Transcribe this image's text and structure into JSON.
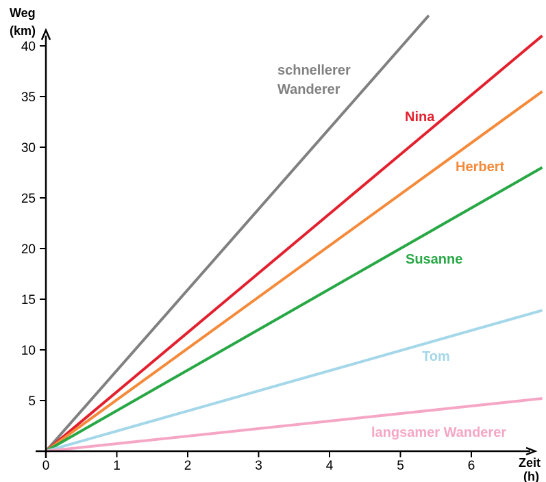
{
  "chart_data": {
    "type": "line",
    "ylabel_lines": [
      "Weg",
      "(km)"
    ],
    "xlabel_lines": [
      "Zeit",
      "(h)"
    ],
    "xlim": [
      0,
      7
    ],
    "ylim": [
      0,
      40
    ],
    "x_ticks": [
      "0",
      "1",
      "2",
      "3",
      "4",
      "5",
      "6"
    ],
    "y_ticks": [
      "5",
      "10",
      "15",
      "20",
      "25",
      "30",
      "35",
      "40"
    ],
    "grid": false,
    "series": [
      {
        "name": "schnellerer Wanderer",
        "label_lines": [
          "schnellerer",
          "Wanderer"
        ],
        "color": "#808080",
        "x": [
          0,
          5.4
        ],
        "y": [
          0,
          43
        ]
      },
      {
        "name": "Nina",
        "label_lines": [
          "Nina"
        ],
        "color": "#e3202e",
        "x": [
          0,
          7
        ],
        "y": [
          0,
          41
        ]
      },
      {
        "name": "Herbert",
        "label_lines": [
          "Herbert"
        ],
        "color": "#f58a3a",
        "x": [
          0,
          7
        ],
        "y": [
          0,
          35.5
        ]
      },
      {
        "name": "Susanne",
        "label_lines": [
          "Susanne"
        ],
        "color": "#27a845",
        "x": [
          0,
          7
        ],
        "y": [
          0,
          28
        ]
      },
      {
        "name": "Tom",
        "label_lines": [
          "Tom"
        ],
        "color": "#a4d7e9",
        "x": [
          0,
          7
        ],
        "y": [
          0,
          13.9
        ]
      },
      {
        "name": "langsamer Wanderer",
        "label_lines": [
          "langsamer Wanderer"
        ],
        "color": "#f5a6c4",
        "x": [
          0,
          7
        ],
        "y": [
          0,
          5.2
        ]
      }
    ]
  }
}
